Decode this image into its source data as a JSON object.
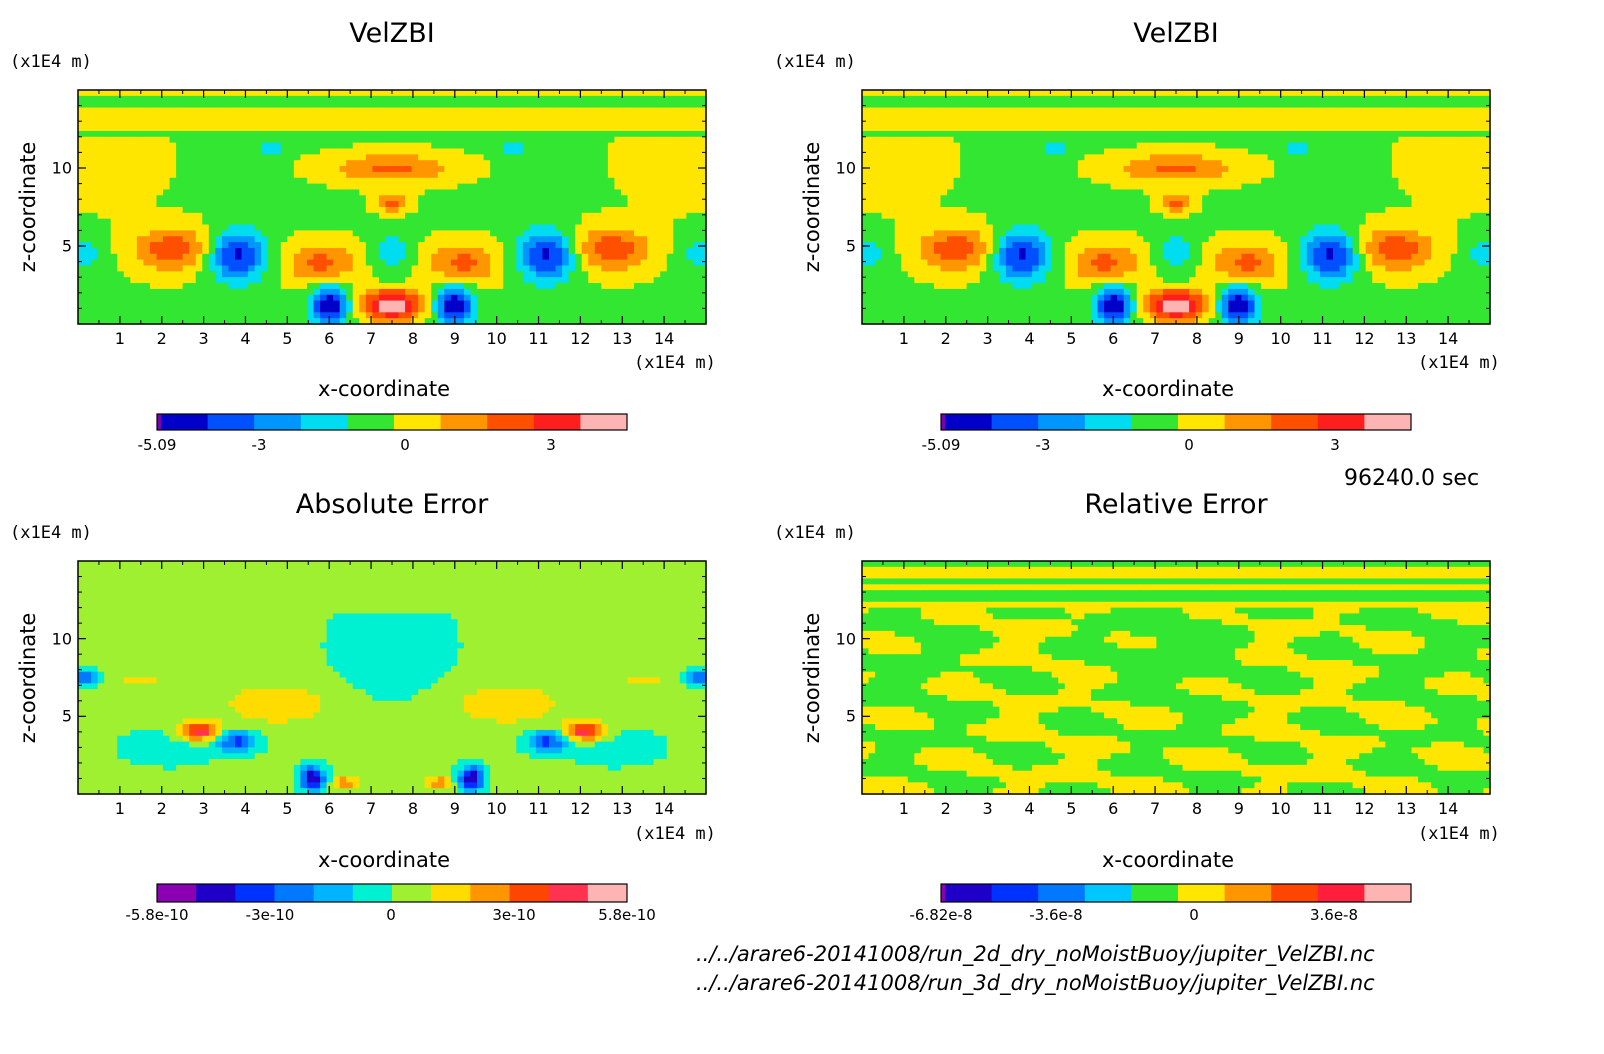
{
  "chart_data": [
    {
      "type": "heatmap",
      "title": "VelZBI",
      "xlabel": "x-coordinate",
      "ylabel": "z-coordinate",
      "x_unit": "(x1E4 m)",
      "y_unit": "(x1E4 m)",
      "xticks": [
        "1",
        "2",
        "3",
        "4",
        "5",
        "6",
        "7",
        "8",
        "9",
        "10",
        "11",
        "12",
        "13",
        "14"
      ],
      "yticks": [
        "5",
        "10"
      ],
      "xlim": [
        0,
        15
      ],
      "ylim": [
        0,
        15
      ],
      "colorbar_labels": [
        "-5.09",
        "-3",
        "0",
        "3"
      ],
      "colorbar_colors": [
        "#7a00b4",
        "#0000c8",
        "#0050ff",
        "#0096ff",
        "#00dcf0",
        "#32e632",
        "#ffe600",
        "#ff9600",
        "#ff5000",
        "#ff1e1e",
        "#ffb4b4"
      ],
      "field": "velzbi"
    },
    {
      "type": "heatmap",
      "title": "VelZBI",
      "xlabel": "x-coordinate",
      "ylabel": "z-coordinate",
      "x_unit": "(x1E4 m)",
      "y_unit": "(x1E4 m)",
      "xticks": [
        "1",
        "2",
        "3",
        "4",
        "5",
        "6",
        "7",
        "8",
        "9",
        "10",
        "11",
        "12",
        "13",
        "14"
      ],
      "yticks": [
        "5",
        "10"
      ],
      "xlim": [
        0,
        15
      ],
      "ylim": [
        0,
        15
      ],
      "colorbar_labels": [
        "-5.09",
        "-3",
        "0",
        "3"
      ],
      "colorbar_colors": [
        "#7a00b4",
        "#0000c8",
        "#0050ff",
        "#0096ff",
        "#00dcf0",
        "#32e632",
        "#ffe600",
        "#ff9600",
        "#ff5000",
        "#ff1e1e",
        "#ffb4b4"
      ],
      "field": "velzbi"
    },
    {
      "type": "heatmap",
      "title": "Absolute Error",
      "xlabel": "x-coordinate",
      "ylabel": "z-coordinate",
      "x_unit": "(x1E4 m)",
      "y_unit": "(x1E4 m)",
      "xticks": [
        "1",
        "2",
        "3",
        "4",
        "5",
        "6",
        "7",
        "8",
        "9",
        "10",
        "11",
        "12",
        "13",
        "14"
      ],
      "yticks": [
        "5",
        "10"
      ],
      "xlim": [
        0,
        15
      ],
      "ylim": [
        0,
        15
      ],
      "colorbar_labels": [
        "-5.8e-10",
        "-3e-10",
        "0",
        "3e-10",
        "5.8e-10"
      ],
      "colorbar_colors": [
        "#8c00b4",
        "#1e00c8",
        "#0032ff",
        "#0078ff",
        "#00b4ff",
        "#00f0d2",
        "#a0f032",
        "#ffdc00",
        "#ff9600",
        "#ff4600",
        "#ff3250",
        "#ffb4b4"
      ],
      "field": "abserr"
    },
    {
      "type": "heatmap",
      "title": "Relative Error",
      "xlabel": "x-coordinate",
      "ylabel": "z-coordinate",
      "x_unit": "(x1E4 m)",
      "y_unit": "(x1E4 m)",
      "xticks": [
        "1",
        "2",
        "3",
        "4",
        "5",
        "6",
        "7",
        "8",
        "9",
        "10",
        "11",
        "12",
        "13",
        "14"
      ],
      "yticks": [
        "5",
        "10"
      ],
      "xlim": [
        0,
        15
      ],
      "ylim": [
        0,
        15
      ],
      "colorbar_labels": [
        "-6.82e-8",
        "-3.6e-8",
        "0",
        "3.6e-8"
      ],
      "colorbar_colors": [
        "#8c00b4",
        "#1e00c8",
        "#0032ff",
        "#0078ff",
        "#00c8ff",
        "#32e632",
        "#ffe600",
        "#ff9600",
        "#ff4600",
        "#ff1e3c",
        "#ffb4b4"
      ],
      "field": "relerr"
    }
  ],
  "time_label": "96240.0 sec",
  "footer_lines": [
    "../../arare6-20141008/run_2d_dry_noMoistBuoy/jupiter_VelZBI.nc",
    "../../arare6-20141008/run_3d_dry_noMoistBuoy/jupiter_VelZBI.nc"
  ]
}
